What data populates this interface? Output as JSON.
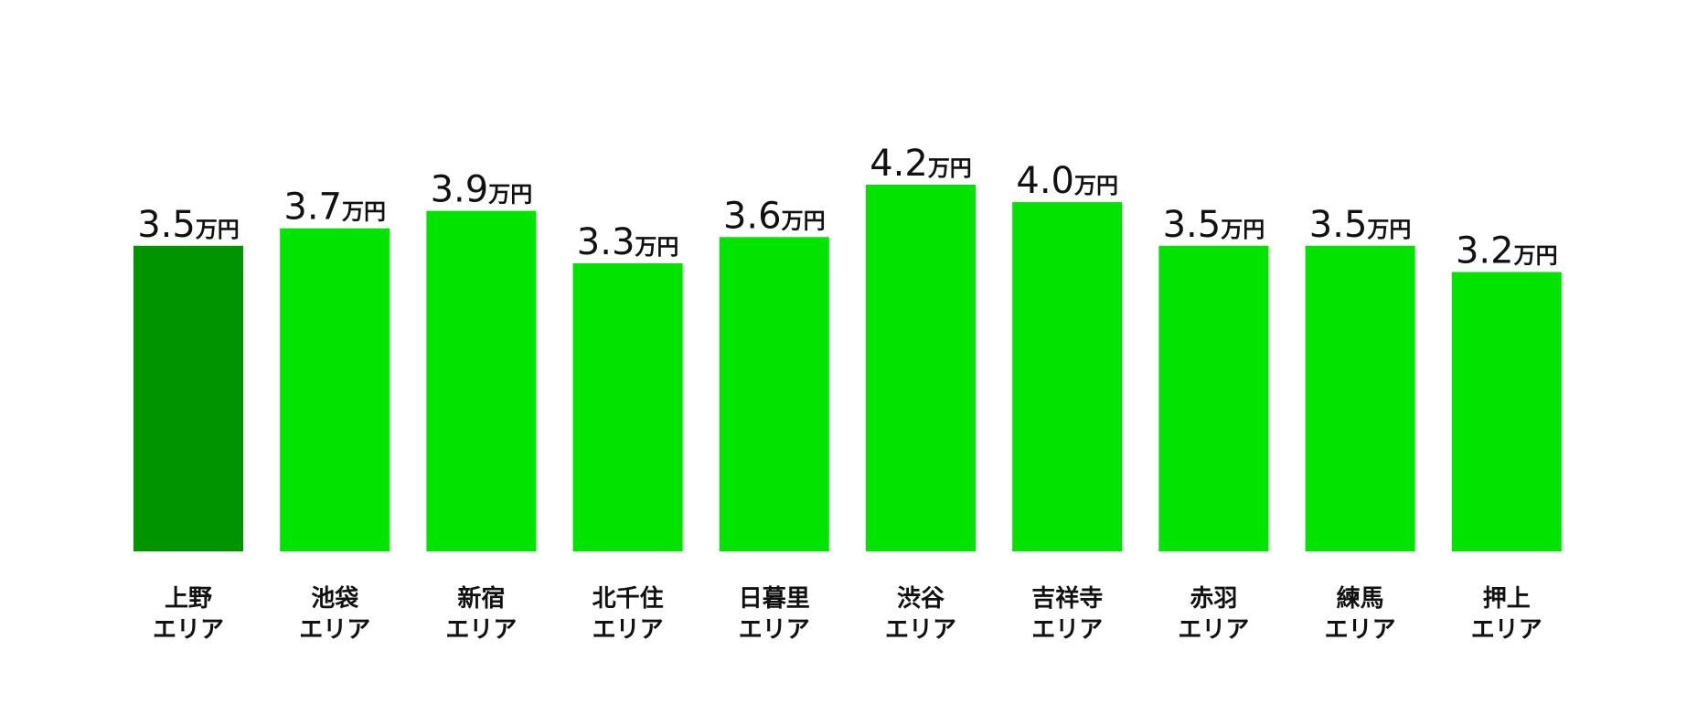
{
  "chart_data": {
    "type": "bar",
    "unit": "万円",
    "categories": [
      {
        "name": "上野",
        "suffix": "エリア"
      },
      {
        "name": "池袋",
        "suffix": "エリア"
      },
      {
        "name": "新宿",
        "suffix": "エリア"
      },
      {
        "name": "北千住",
        "suffix": "エリア"
      },
      {
        "name": "日暮里",
        "suffix": "エリア"
      },
      {
        "name": "渋谷",
        "suffix": "エリア"
      },
      {
        "name": "吉祥寺",
        "suffix": "エリア"
      },
      {
        "name": "赤羽",
        "suffix": "エリア"
      },
      {
        "name": "練馬",
        "suffix": "エリア"
      },
      {
        "name": "押上",
        "suffix": "エリア"
      }
    ],
    "values": [
      3.5,
      3.7,
      3.9,
      3.3,
      3.6,
      4.2,
      4.0,
      3.5,
      3.5,
      3.2
    ],
    "value_labels": [
      "3.5",
      "3.7",
      "3.9",
      "3.3",
      "3.6",
      "4.2",
      "4.0",
      "3.5",
      "3.5",
      "3.2"
    ],
    "highlight_index": 0,
    "colors": {
      "bar": "#00e400",
      "highlight": "#009400"
    },
    "ylim": [
      0,
      4.2
    ],
    "grid": false,
    "legend": "none",
    "title": "",
    "xlabel": "",
    "ylabel": ""
  }
}
